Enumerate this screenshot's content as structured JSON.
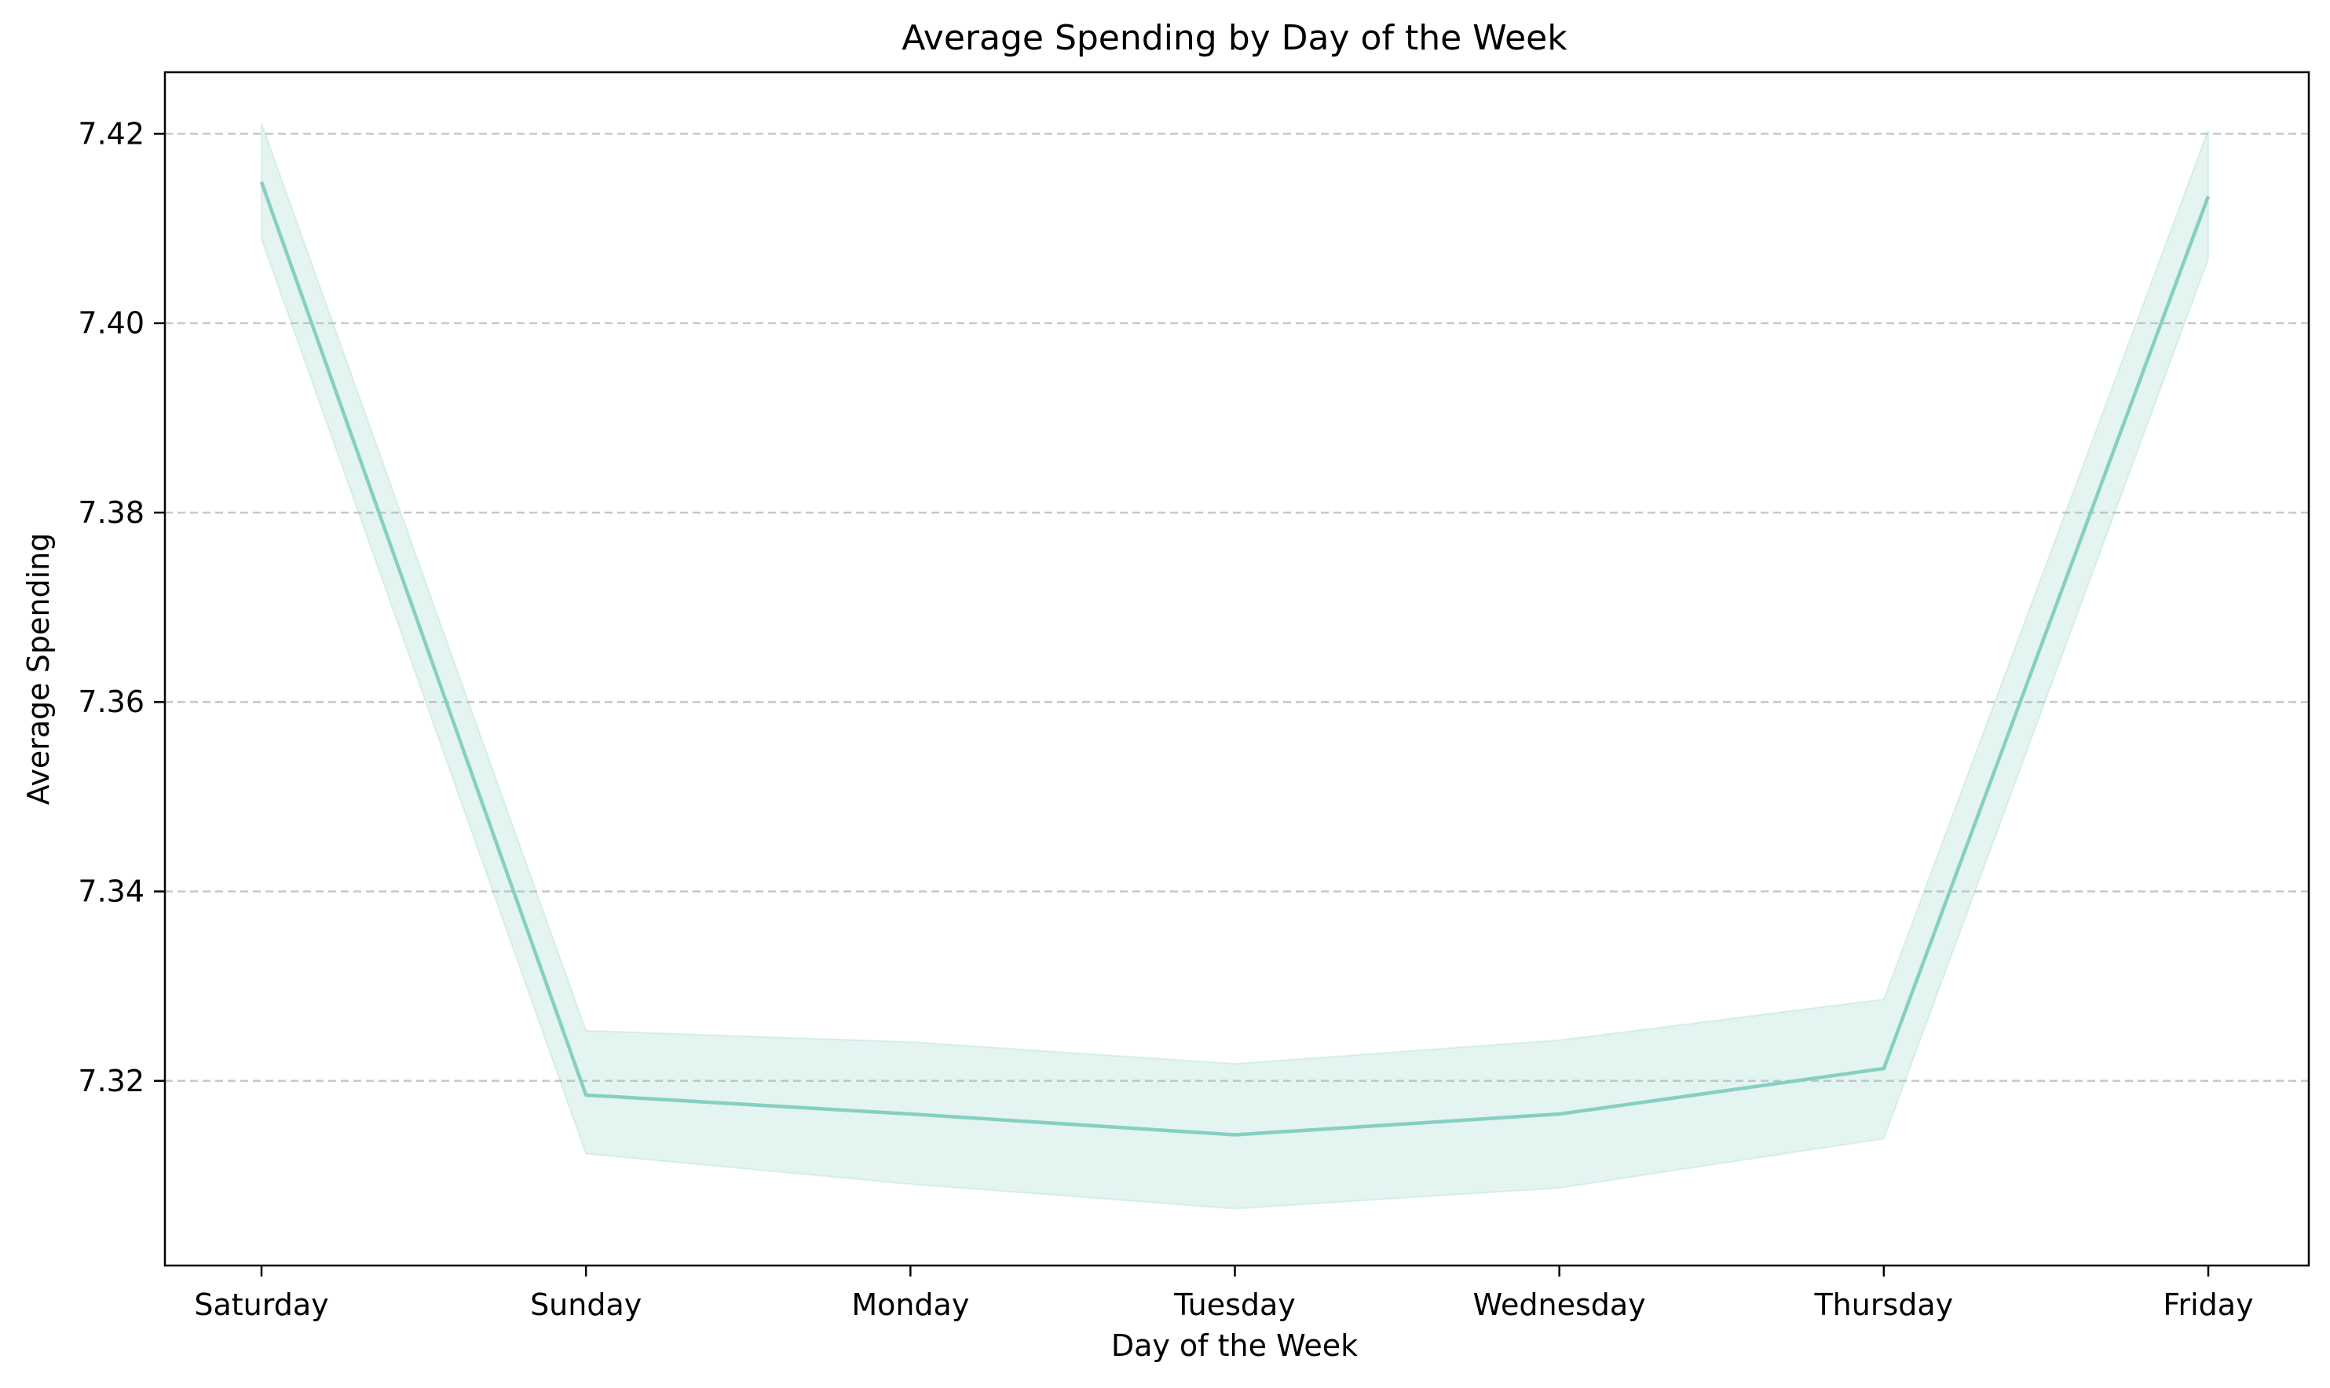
{
  "chart_data": {
    "type": "line",
    "title": "Average Spending by Day of the Week",
    "xlabel": "Day of the Week",
    "ylabel": "Average Spending",
    "categories": [
      "Saturday",
      "Sunday",
      "Monday",
      "Tuesday",
      "Wednesday",
      "Thursday",
      "Friday"
    ],
    "series": [
      {
        "values": [
          7.4149,
          7.3185,
          7.3165,
          7.3143,
          7.3165,
          7.3213,
          7.4134
        ],
        "lower": [
          7.4089,
          7.3123,
          7.3091,
          7.3065,
          7.3087,
          7.3139,
          7.4068
        ],
        "upper": [
          7.4211,
          7.3253,
          7.3241,
          7.3218,
          7.3243,
          7.3286,
          7.4204
        ],
        "color": "#86cfc1",
        "band_color": "#86cfc1"
      }
    ],
    "ylim": [
      7.3005,
      7.4265
    ],
    "yticks": [
      "7.32",
      "7.34",
      "7.36",
      "7.38",
      "7.40",
      "7.42"
    ],
    "grid": "y-dashed",
    "legend": "none"
  }
}
